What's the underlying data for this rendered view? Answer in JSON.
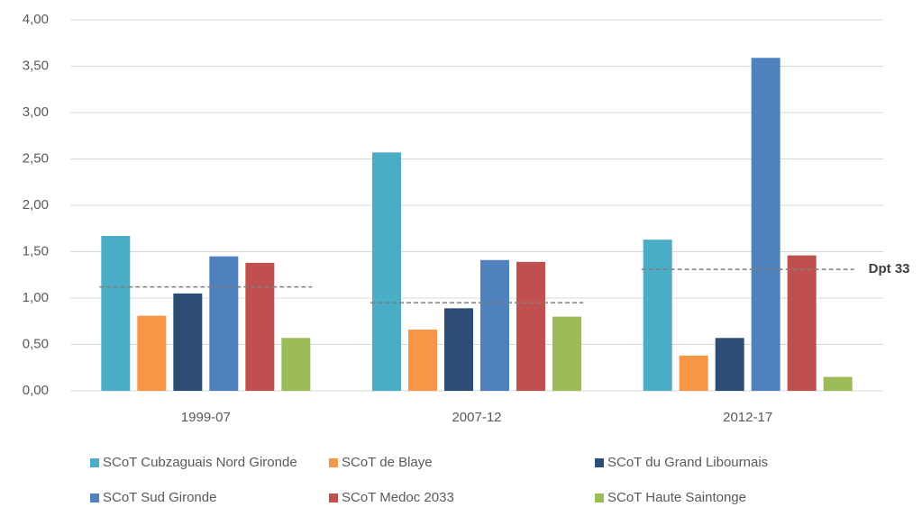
{
  "chart_data": {
    "type": "bar",
    "categories": [
      "1999-07",
      "2007-12",
      "2012-17"
    ],
    "series": [
      {
        "name": "SCoT Cubzaguais Nord Gironde",
        "color": "#4bacc6",
        "values": [
          1.67,
          2.57,
          1.63
        ]
      },
      {
        "name": "SCoT de Blaye",
        "color": "#f79646",
        "values": [
          0.81,
          0.66,
          0.38
        ]
      },
      {
        "name": "SCoT du Grand Libournais",
        "color": "#2c4d75",
        "values": [
          1.05,
          0.89,
          0.57
        ]
      },
      {
        "name": "SCoT Sud Gironde",
        "color": "#4f81bd",
        "values": [
          1.45,
          1.41,
          3.59
        ]
      },
      {
        "name": "SCoT Medoc 2033",
        "color": "#c0504d",
        "values": [
          1.38,
          1.39,
          1.46
        ]
      },
      {
        "name": "SCoT Haute Saintonge",
        "color": "#9bbb59",
        "values": [
          0.57,
          0.8,
          0.15
        ]
      }
    ],
    "reference": {
      "name": "Dpt 33",
      "color": "#7f7f7f",
      "values": [
        1.12,
        0.95,
        1.31
      ]
    },
    "ylim": [
      0,
      4
    ],
    "yticks": [
      {
        "value": 0,
        "label": "0,00"
      },
      {
        "value": 0.5,
        "label": "0,50"
      },
      {
        "value": 1,
        "label": "1,00"
      },
      {
        "value": 1.5,
        "label": "1,50"
      },
      {
        "value": 2,
        "label": "2,00"
      },
      {
        "value": 2.5,
        "label": "2,50"
      },
      {
        "value": 3,
        "label": "3,00"
      },
      {
        "value": 3.5,
        "label": "3,50"
      },
      {
        "value": 4,
        "label": "4,00"
      }
    ],
    "grid": true
  }
}
